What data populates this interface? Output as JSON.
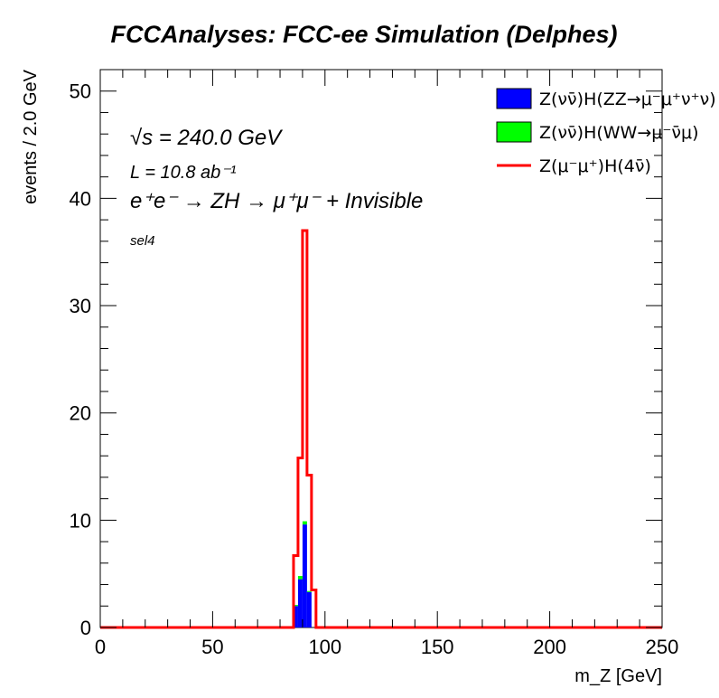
{
  "chart_data": {
    "type": "bar",
    "title": "FCCAnalyses: FCC-ee Simulation (Delphes)",
    "xlabel": "m_Z [GeV]",
    "ylabel": "events / 2.0 GeV",
    "xlim": [
      0,
      250
    ],
    "ylim": [
      0,
      52
    ],
    "xticks": [
      0,
      50,
      100,
      150,
      200,
      250
    ],
    "yticks": [
      0,
      10,
      20,
      30,
      40,
      50
    ],
    "bin_width": 2.0,
    "bin_edges": [
      86,
      88,
      90,
      92,
      94,
      96
    ],
    "series": [
      {
        "name": "Z(νν̄)H(ZZ→μ⁻μ⁺ν⁺ν)",
        "style": "stacked-fill",
        "color": "#0000ff",
        "values": [
          2.0,
          4.5,
          9.6,
          3.3,
          0.0
        ]
      },
      {
        "name": "Z(νν̄)H(WW→μ⁻ν̄μ)",
        "style": "stacked-fill",
        "color": "#00ff00",
        "values": [
          0.1,
          0.3,
          0.3,
          0.1,
          0.0
        ]
      },
      {
        "name": "Z(μ⁻μ⁺)H(4ν̄)",
        "style": "step-line",
        "color": "#ff0000",
        "values": [
          6.7,
          15.8,
          37.0,
          14.2,
          3.5
        ]
      }
    ],
    "annotations": [
      {
        "id": "sqrts",
        "text": "√s = 240.0 GeV"
      },
      {
        "id": "lumi",
        "text": "L = 10.8 ab⁻¹"
      },
      {
        "id": "process",
        "text": "e⁺e⁻ → ZH → μ⁺μ⁻ + Invisible"
      },
      {
        "id": "selection",
        "text": "sel4"
      }
    ],
    "legend_position": "top-right"
  }
}
